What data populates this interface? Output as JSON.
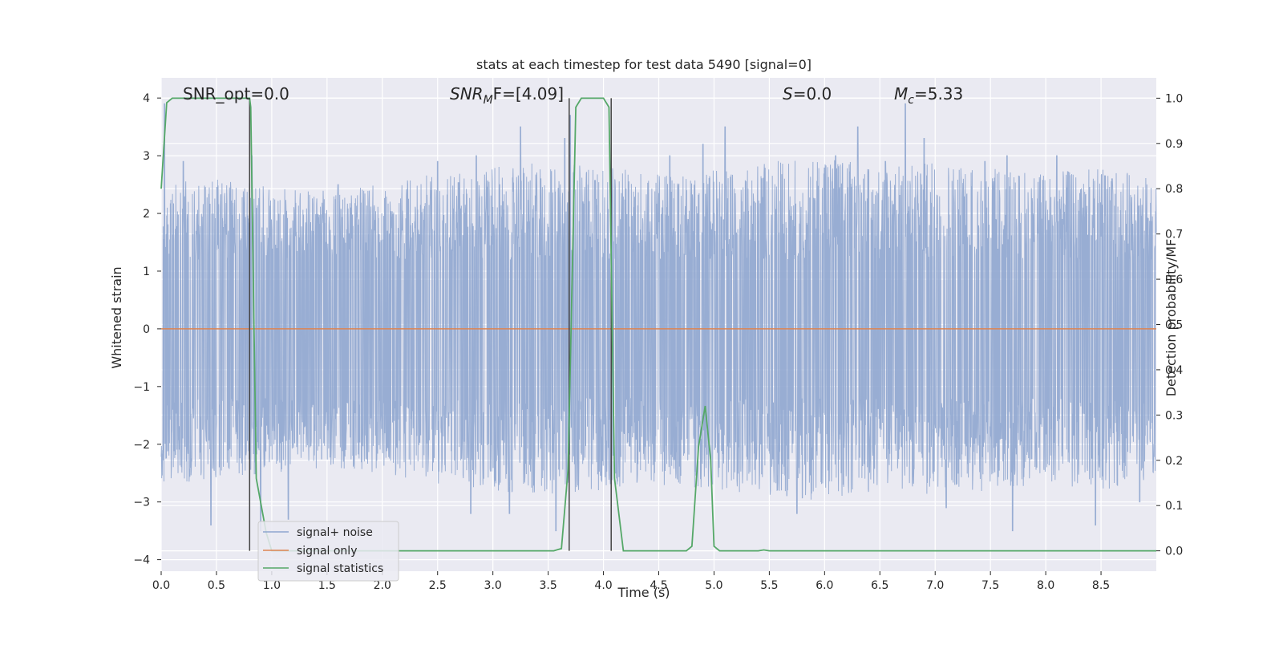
{
  "chart_data": {
    "type": "line",
    "title": "stats at each timestep for test data 5490 [signal=0]",
    "xlabel": "Time (s)",
    "ylabel": "Whitened strain",
    "y2label": "Detection probability/MF",
    "xlim": [
      0,
      9
    ],
    "ylim": [
      -4.2,
      4.35
    ],
    "y2lim": [
      -0.045,
      1.045
    ],
    "x_ticks": [
      0.0,
      0.5,
      1.0,
      1.5,
      2.0,
      2.5,
      3.0,
      3.5,
      4.0,
      4.5,
      5.0,
      5.5,
      6.0,
      6.5,
      7.0,
      7.5,
      8.0,
      8.5
    ],
    "x_tick_labels": [
      "0.0",
      "0.5",
      "1.0",
      "1.5",
      "2.0",
      "2.5",
      "3.0",
      "3.5",
      "4.0",
      "4.5",
      "5.0",
      "5.5",
      "6.0",
      "6.5",
      "7.0",
      "7.5",
      "8.0",
      "8.5"
    ],
    "y_ticks": [
      4,
      3,
      2,
      1,
      0,
      -1,
      -2,
      -3,
      -4
    ],
    "y_tick_labels": [
      "4",
      "3",
      "2",
      "1",
      "0",
      "−1",
      "−2",
      "−3",
      "−4"
    ],
    "y2_ticks": [
      1.0,
      0.9,
      0.8,
      0.7,
      0.6,
      0.5,
      0.4,
      0.3,
      0.2,
      0.1,
      0.0
    ],
    "y2_tick_labels": [
      "1.0",
      "0.9",
      "0.8",
      "0.7",
      "0.6",
      "0.5",
      "0.4",
      "0.3",
      "0.2",
      "0.1",
      "0.0"
    ],
    "grid": true,
    "legend_location": "lower-left",
    "annotations": {
      "snr_opt": "SNR_opt=0.0",
      "snr_mf_main": "SNR",
      "snr_mf_sub": "M",
      "snr_mf_rest": "F=[4.09]",
      "s_main": "S",
      "s_rest": "=0.0",
      "mc_main": "M",
      "mc_sub": "c",
      "mc_rest": "=5.33"
    },
    "series": [
      {
        "name": "signal+ noise",
        "color": "#8fa6cf",
        "description": "whitened noisy strain, roughly within ±2.5 with spikes up to ±3.9",
        "envelope_upper": [
          [
            0.0,
            2.7
          ],
          [
            0.5,
            2.6
          ],
          [
            1.0,
            2.5
          ],
          [
            1.5,
            2.4
          ],
          [
            2.0,
            2.5
          ],
          [
            2.5,
            2.7
          ],
          [
            3.0,
            2.8
          ],
          [
            3.5,
            2.9
          ],
          [
            4.0,
            2.8
          ],
          [
            4.5,
            2.7
          ],
          [
            5.0,
            2.8
          ],
          [
            5.5,
            2.9
          ],
          [
            6.0,
            3.0
          ],
          [
            6.5,
            2.8
          ],
          [
            7.0,
            2.9
          ],
          [
            7.5,
            2.8
          ],
          [
            8.0,
            2.7
          ],
          [
            8.5,
            2.8
          ],
          [
            9.0,
            2.6
          ]
        ],
        "spikes": [
          [
            0.03,
            3.9
          ],
          [
            0.2,
            2.9
          ],
          [
            0.45,
            2.5
          ],
          [
            0.82,
            3.0
          ],
          [
            1.6,
            2.5
          ],
          [
            2.5,
            2.9
          ],
          [
            2.85,
            3.0
          ],
          [
            3.25,
            3.5
          ],
          [
            3.65,
            3.3
          ],
          [
            3.7,
            3.7
          ],
          [
            4.6,
            3.0
          ],
          [
            4.9,
            3.2
          ],
          [
            5.1,
            3.5
          ],
          [
            5.75,
            3.0
          ],
          [
            6.1,
            3.0
          ],
          [
            6.3,
            3.5
          ],
          [
            6.55,
            2.9
          ],
          [
            6.73,
            3.9
          ],
          [
            6.9,
            3.3
          ],
          [
            7.45,
            2.9
          ],
          [
            7.65,
            3.0
          ],
          [
            8.1,
            3.0
          ],
          [
            8.45,
            3.5
          ],
          [
            8.6,
            2.6
          ],
          [
            0.45,
            -3.4
          ],
          [
            0.9,
            -3.5
          ],
          [
            1.15,
            -3.3
          ],
          [
            2.8,
            -3.2
          ],
          [
            3.15,
            -3.2
          ],
          [
            3.57,
            -3.5
          ],
          [
            5.75,
            -3.2
          ],
          [
            7.1,
            -3.1
          ],
          [
            7.7,
            -3.5
          ],
          [
            8.45,
            -3.4
          ],
          [
            8.85,
            -3.0
          ]
        ]
      },
      {
        "name": "signal only",
        "color": "#dd8452",
        "x": [
          0,
          9
        ],
        "y": [
          0,
          0
        ]
      },
      {
        "name": "signal statistics",
        "color": "#55a868",
        "axis": "right",
        "x": [
          0.0,
          0.05,
          0.1,
          0.8,
          0.81,
          0.86,
          0.95,
          1.0,
          3.55,
          3.62,
          3.68,
          3.75,
          3.8,
          4.0,
          4.05,
          4.1,
          4.18,
          4.75,
          4.8,
          4.86,
          4.92,
          4.97,
          5.0,
          5.05,
          5.4,
          5.45,
          5.5,
          9.0
        ],
        "y": [
          0.8,
          0.99,
          1.0,
          1.0,
          0.98,
          0.16,
          0.04,
          0.0,
          0.0,
          0.005,
          0.18,
          0.98,
          1.0,
          1.0,
          0.98,
          0.16,
          0.0,
          0.0,
          0.01,
          0.23,
          0.32,
          0.2,
          0.01,
          0.0,
          0.0,
          0.002,
          0.0,
          0.0
        ]
      }
    ],
    "vlines": {
      "color": "#444444",
      "x": [
        0.8,
        3.69,
        4.07
      ],
      "y2_range": [
        0.0,
        1.0
      ]
    }
  }
}
